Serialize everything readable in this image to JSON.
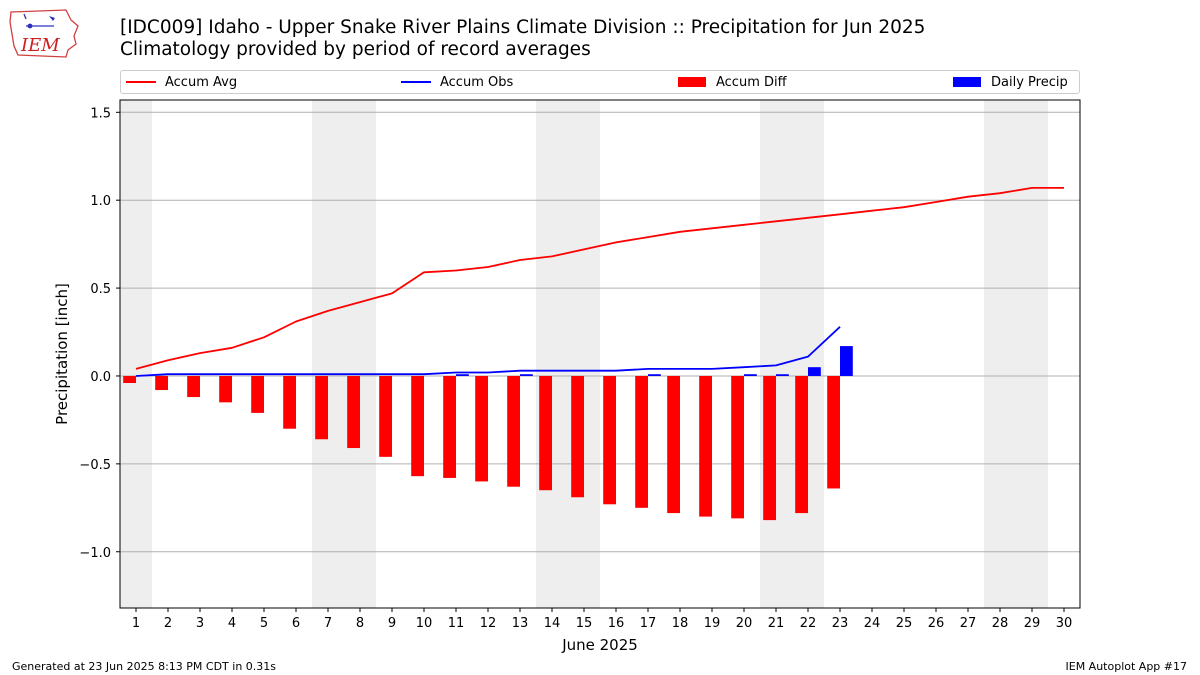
{
  "header": {
    "logo_text": "IEM",
    "title_line1": "[IDC009] Idaho - Upper Snake River Plains Climate Division :: Precipitation for Jun 2025",
    "title_line2": "Climatology provided by period of record averages"
  },
  "legend": {
    "accum_avg": "Accum Avg",
    "accum_obs": "Accum Obs",
    "accum_diff": "Accum Diff",
    "daily_precip": "Daily Precip"
  },
  "footer": {
    "generated": "Generated at 23 Jun 2025 8:13 PM CDT in 0.31s",
    "app": "IEM Autoplot App #17"
  },
  "colors": {
    "accum_avg": "#ff0000",
    "accum_obs": "#0000ff",
    "accum_diff": "#ff0000",
    "daily_precip": "#0000ff",
    "weekend_shade": "#eeeeee",
    "grid": "#b0b0b0"
  },
  "chart_data": {
    "type": "bar",
    "xlabel": "June 2025",
    "ylabel": "Precipitation [inch]",
    "xlim": [
      0.5,
      30.5
    ],
    "ylim": [
      -1.32,
      1.57
    ],
    "grid": "horizontal",
    "legend_position": "top",
    "x": [
      1,
      2,
      3,
      4,
      5,
      6,
      7,
      8,
      9,
      10,
      11,
      12,
      13,
      14,
      15,
      16,
      17,
      18,
      19,
      20,
      21,
      22,
      23,
      24,
      25,
      26,
      27,
      28,
      29,
      30
    ],
    "yticks": [
      -1.0,
      -0.5,
      0.0,
      0.5,
      1.0,
      1.5
    ],
    "ytick_labels": [
      "−1.0",
      "−0.5",
      "0.0",
      "0.5",
      "1.0",
      "1.5"
    ],
    "weekend_days": [
      1,
      7,
      8,
      14,
      15,
      21,
      22,
      28,
      29
    ],
    "series": [
      {
        "name": "Accum Avg",
        "kind": "line",
        "x": [
          1,
          2,
          3,
          4,
          5,
          6,
          7,
          8,
          9,
          10,
          11,
          12,
          13,
          14,
          15,
          16,
          17,
          18,
          19,
          20,
          21,
          22,
          23,
          24,
          25,
          26,
          27,
          28,
          29,
          30
        ],
        "values": [
          0.04,
          0.09,
          0.13,
          0.16,
          0.22,
          0.31,
          0.37,
          0.42,
          0.47,
          0.59,
          0.6,
          0.62,
          0.66,
          0.68,
          0.72,
          0.76,
          0.79,
          0.82,
          0.84,
          0.86,
          0.88,
          0.9,
          0.92,
          0.94,
          0.96,
          0.99,
          1.02,
          1.04,
          1.07,
          1.07
        ]
      },
      {
        "name": "Accum Obs",
        "kind": "line",
        "x": [
          1,
          2,
          3,
          4,
          5,
          6,
          7,
          8,
          9,
          10,
          11,
          12,
          13,
          14,
          15,
          16,
          17,
          18,
          19,
          20,
          21,
          22,
          23
        ],
        "values": [
          0.0,
          0.01,
          0.01,
          0.01,
          0.01,
          0.01,
          0.01,
          0.01,
          0.01,
          0.01,
          0.02,
          0.02,
          0.03,
          0.03,
          0.03,
          0.03,
          0.04,
          0.04,
          0.04,
          0.05,
          0.06,
          0.11,
          0.28
        ]
      },
      {
        "name": "Accum Diff",
        "kind": "bar",
        "x": [
          1,
          2,
          3,
          4,
          5,
          6,
          7,
          8,
          9,
          10,
          11,
          12,
          13,
          14,
          15,
          16,
          17,
          18,
          19,
          20,
          21,
          22,
          23
        ],
        "values": [
          -0.04,
          -0.08,
          -0.12,
          -0.15,
          -0.21,
          -0.3,
          -0.36,
          -0.41,
          -0.46,
          -0.57,
          -0.58,
          -0.6,
          -0.63,
          -0.65,
          -0.69,
          -0.73,
          -0.75,
          -0.78,
          -0.8,
          -0.81,
          -0.82,
          -0.78,
          -0.64
        ]
      },
      {
        "name": "Daily Precip",
        "kind": "bar",
        "x": [
          1,
          2,
          3,
          4,
          5,
          6,
          7,
          8,
          9,
          10,
          11,
          12,
          13,
          14,
          15,
          16,
          17,
          18,
          19,
          20,
          21,
          22,
          23
        ],
        "values": [
          0.0,
          0.0,
          0.0,
          0.0,
          0.0,
          0.0,
          0.0,
          0.0,
          0.0,
          0.0,
          0.01,
          0.0,
          0.01,
          0.0,
          0.0,
          0.0,
          0.01,
          0.0,
          0.0,
          0.01,
          0.01,
          0.05,
          0.17
        ]
      }
    ]
  }
}
